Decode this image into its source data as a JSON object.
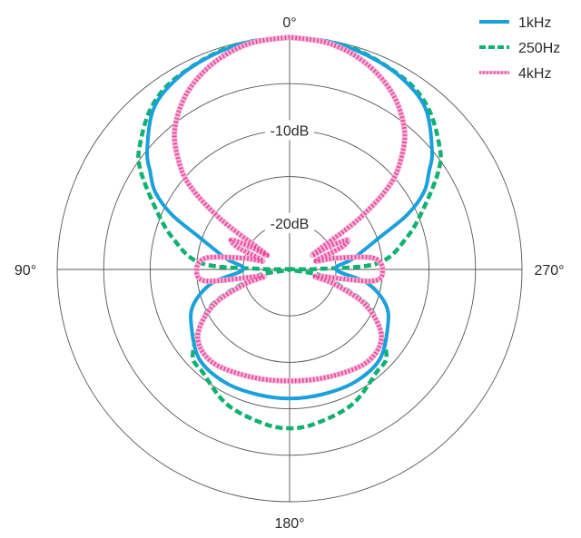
{
  "chart_data": {
    "type": "polar",
    "title": "",
    "angle_labels": {
      "top": "0°",
      "left": "90°",
      "right": "270°",
      "bottom": "180°"
    },
    "radial_labels": [
      "-10dB",
      "-20dB"
    ],
    "radial_range_db": [
      -25,
      0
    ],
    "ring_step_db": 5,
    "grid": true,
    "legend_position": "top-right",
    "angles_deg": [
      0,
      10,
      20,
      30,
      40,
      50,
      55,
      60,
      65,
      70,
      80,
      90,
      100,
      110,
      120,
      135,
      150,
      165,
      180
    ],
    "series": [
      {
        "name": "1kHz",
        "color": "#1aa0da",
        "style": "solid",
        "db": [
          0,
          -0.1,
          -0.5,
          -1.1,
          -2.3,
          -5.0,
          -6.7,
          -8.3,
          -11,
          -14.5,
          -18,
          -20,
          -16.5,
          -14,
          -12.8,
          -11.3,
          -11,
          -11.1,
          -11.1
        ]
      },
      {
        "name": "250Hz",
        "color": "#12b071",
        "style": "dashed",
        "angles_deg": [
          0,
          15,
          30,
          40,
          50,
          56,
          65,
          75,
          86,
          89,
          91,
          100,
          106,
          116,
          131,
          140,
          155,
          170,
          180
        ],
        "db": [
          0,
          -0.2,
          -1.0,
          -2.0,
          -4.0,
          -5.6,
          -9,
          -12,
          -15.5,
          -22,
          -25,
          -22,
          -20,
          -15.3,
          -11.2,
          -10.5,
          -9,
          -8.2,
          -7.9
        ]
      },
      {
        "name": "4kHz",
        "color": "#e8409a",
        "style": "dotted",
        "angles_deg": [
          0,
          10,
          20,
          30,
          39,
          45,
          50,
          54,
          57,
          60,
          63,
          67,
          72,
          76,
          82,
          90,
          98,
          104,
          108,
          115,
          126,
          140,
          160,
          180
        ],
        "db": [
          0,
          -0.3,
          -1.3,
          -3,
          -5.4,
          -8,
          -11,
          -16,
          -22,
          -20,
          -18,
          -19,
          -22,
          -20,
          -16,
          -15,
          -16,
          -22,
          -20,
          -16,
          -12.8,
          -12,
          -12.7,
          -13
        ]
      }
    ]
  }
}
